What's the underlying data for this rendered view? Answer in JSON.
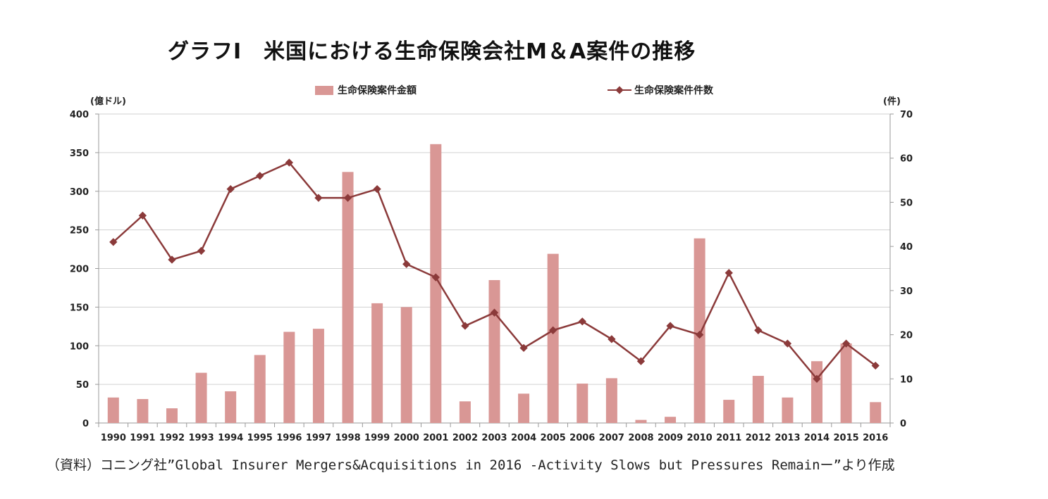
{
  "title": "グラフI　米国における生命保険会社M＆A案件の推移",
  "source_note": "（資料）コニング社”Global Insurer Mergers&Acquisitions in 2016 -Activity Slows but Pressures Remainー”より作成",
  "colors": {
    "bar": "#d99795",
    "line": "#8b3a3a",
    "axis": "#999999",
    "grid": "#d0d0d0"
  },
  "chart_data": {
    "type": "bar",
    "categories": [
      "1990",
      "1991",
      "1992",
      "1993",
      "1994",
      "1995",
      "1996",
      "1997",
      "1998",
      "1999",
      "2000",
      "2001",
      "2002",
      "2003",
      "2004",
      "2005",
      "2006",
      "2007",
      "2008",
      "2009",
      "2010",
      "2011",
      "2012",
      "2013",
      "2014",
      "2015",
      "2016"
    ],
    "series": [
      {
        "name": "生命保険案件金額",
        "type": "bar",
        "axis": "left",
        "values": [
          33,
          31,
          19,
          65,
          41,
          88,
          118,
          122,
          325,
          155,
          150,
          361,
          28,
          185,
          38,
          219,
          51,
          58,
          4,
          8,
          239,
          30,
          61,
          33,
          80,
          103,
          27
        ]
      },
      {
        "name": "生命保険案件件数",
        "type": "line",
        "axis": "right",
        "values": [
          41,
          47,
          37,
          39,
          53,
          56,
          59,
          51,
          51,
          53,
          36,
          33,
          22,
          25,
          17,
          21,
          23,
          19,
          14,
          22,
          20,
          34,
          21,
          18,
          10,
          18,
          13
        ]
      }
    ],
    "y_left": {
      "label": "(億ドル)",
      "lim": [
        0,
        400
      ],
      "ticks": [
        "0",
        "50",
        "100",
        "150",
        "200",
        "250",
        "300",
        "350",
        "400"
      ]
    },
    "y_right": {
      "label": "(件)",
      "lim": [
        0,
        70
      ],
      "ticks": [
        "0",
        "10",
        "20",
        "30",
        "40",
        "50",
        "60",
        "70"
      ]
    },
    "grid": true,
    "legend": "top"
  }
}
